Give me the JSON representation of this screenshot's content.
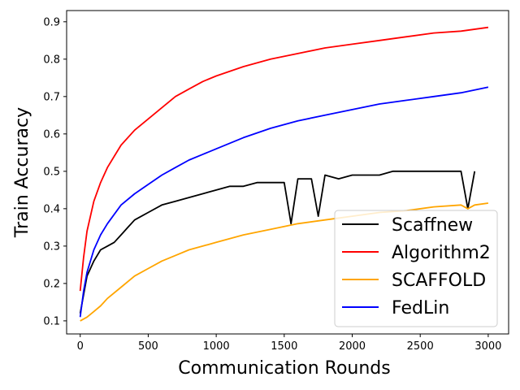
{
  "chart_data": {
    "type": "line",
    "title": "",
    "xlabel": "Communication Rounds",
    "ylabel": "Train Accuracy",
    "xlim": [
      -100,
      3150
    ],
    "ylim": [
      0.065,
      0.93
    ],
    "xticks": [
      0,
      500,
      1000,
      1500,
      2000,
      2500,
      3000
    ],
    "yticks": [
      0.1,
      0.2,
      0.3,
      0.4,
      0.5,
      0.6,
      0.7,
      0.8,
      0.9
    ],
    "grid": false,
    "legend_position": "bottom-right",
    "series": [
      {
        "name": "Scaffnew",
        "color": "#000000",
        "x": [
          0,
          50,
          100,
          150,
          200,
          250,
          300,
          350,
          400,
          450,
          500,
          600,
          700,
          800,
          900,
          1000,
          1100,
          1200,
          1300,
          1400,
          1500,
          1550,
          1600,
          1700,
          1750,
          1800,
          1900,
          2000,
          2100,
          2200,
          2300,
          2400,
          2500,
          2600,
          2700,
          2800,
          2850,
          2900
        ],
        "y": [
          0.12,
          0.22,
          0.26,
          0.29,
          0.3,
          0.31,
          0.33,
          0.35,
          0.37,
          0.38,
          0.39,
          0.41,
          0.42,
          0.43,
          0.44,
          0.45,
          0.46,
          0.46,
          0.47,
          0.47,
          0.47,
          0.36,
          0.48,
          0.48,
          0.38,
          0.49,
          0.48,
          0.49,
          0.49,
          0.49,
          0.5,
          0.5,
          0.5,
          0.5,
          0.5,
          0.5,
          0.4,
          0.5
        ]
      },
      {
        "name": "Algorithm2",
        "color": "#ff0000",
        "x": [
          0,
          25,
          50,
          100,
          150,
          200,
          250,
          300,
          400,
          500,
          600,
          700,
          800,
          900,
          1000,
          1200,
          1400,
          1600,
          1800,
          2000,
          2200,
          2400,
          2600,
          2800,
          3000
        ],
        "y": [
          0.18,
          0.27,
          0.34,
          0.42,
          0.47,
          0.51,
          0.54,
          0.57,
          0.61,
          0.64,
          0.67,
          0.7,
          0.72,
          0.74,
          0.755,
          0.78,
          0.8,
          0.815,
          0.83,
          0.84,
          0.85,
          0.86,
          0.87,
          0.875,
          0.885
        ]
      },
      {
        "name": "SCAFFOLD",
        "color": "#ffa500",
        "x": [
          0,
          50,
          100,
          150,
          200,
          300,
          400,
          500,
          600,
          700,
          800,
          900,
          1000,
          1200,
          1400,
          1600,
          1800,
          2000,
          2200,
          2400,
          2600,
          2800,
          2850,
          2900,
          3000
        ],
        "y": [
          0.1,
          0.11,
          0.125,
          0.14,
          0.16,
          0.19,
          0.22,
          0.24,
          0.26,
          0.275,
          0.29,
          0.3,
          0.31,
          0.33,
          0.345,
          0.36,
          0.37,
          0.38,
          0.39,
          0.395,
          0.405,
          0.41,
          0.4,
          0.41,
          0.415
        ]
      },
      {
        "name": "FedLin",
        "color": "#0000ff",
        "x": [
          0,
          25,
          50,
          100,
          150,
          200,
          300,
          400,
          500,
          600,
          700,
          800,
          900,
          1000,
          1200,
          1400,
          1600,
          1800,
          2000,
          2200,
          2400,
          2600,
          2800,
          3000
        ],
        "y": [
          0.11,
          0.18,
          0.23,
          0.29,
          0.33,
          0.36,
          0.41,
          0.44,
          0.465,
          0.49,
          0.51,
          0.53,
          0.545,
          0.56,
          0.59,
          0.615,
          0.635,
          0.65,
          0.665,
          0.68,
          0.69,
          0.7,
          0.71,
          0.725
        ]
      }
    ]
  }
}
